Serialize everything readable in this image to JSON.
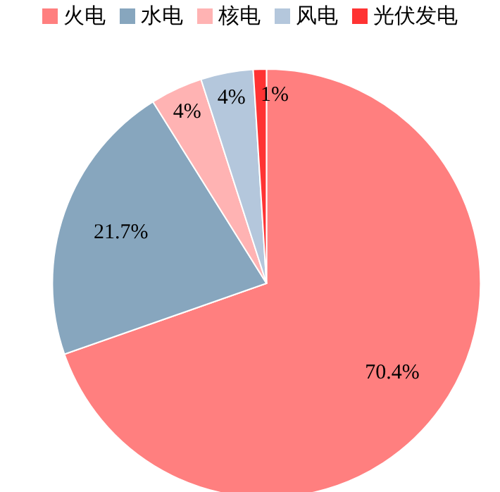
{
  "chart_data": {
    "type": "pie",
    "categories": [
      "火电",
      "水电",
      "核电",
      "风电",
      "光伏发电"
    ],
    "values": [
      70.4,
      21.7,
      4,
      4,
      1
    ],
    "colors": [
      "#ff7f7f",
      "#87a6be",
      "#ffb3b3",
      "#b4c7dc",
      "#ff3333"
    ],
    "value_labels": [
      "70.4%",
      "21.7%",
      "4%",
      "4%",
      "1%"
    ],
    "legend": "top"
  }
}
